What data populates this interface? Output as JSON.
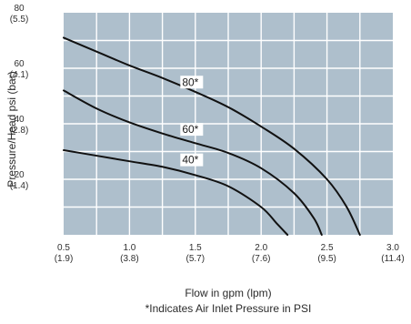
{
  "chart_data": {
    "type": "line",
    "xlabel": "Flow in gpm (lpm)",
    "ylabel": "Pressure/Head psi (bar)",
    "note": "*Indicates Air Inlet Pressure in PSI",
    "xlim": [
      0.5,
      3.0
    ],
    "ylim": [
      0,
      80
    ],
    "grid": true,
    "background_color": "#aebfcc",
    "grid_color": "#ffffff",
    "line_color": "#111111",
    "x_ticks": [
      {
        "value": 0.5,
        "label": "0.5",
        "sublabel": "(1.9)"
      },
      {
        "value": 1.0,
        "label": "1.0",
        "sublabel": "(3.8)"
      },
      {
        "value": 1.5,
        "label": "1.5",
        "sublabel": "(5.7)"
      },
      {
        "value": 2.0,
        "label": "2.0",
        "sublabel": "(7.6)"
      },
      {
        "value": 2.5,
        "label": "2.5",
        "sublabel": "(9.5)"
      },
      {
        "value": 3.0,
        "label": "3.0",
        "sublabel": "(11.4)"
      }
    ],
    "y_ticks": [
      {
        "value": 80,
        "label": "80",
        "sublabel": "(5.5)"
      },
      {
        "value": 60,
        "label": "60",
        "sublabel": "(4.1)"
      },
      {
        "value": 40,
        "label": "40",
        "sublabel": "(2.8)"
      },
      {
        "value": 20,
        "label": "20",
        "sublabel": "(1.4)"
      }
    ],
    "series": [
      {
        "name": "80*",
        "points": [
          {
            "x": 0.5,
            "y": 71
          },
          {
            "x": 0.75,
            "y": 66
          },
          {
            "x": 1.0,
            "y": 61
          },
          {
            "x": 1.25,
            "y": 56.5
          },
          {
            "x": 1.5,
            "y": 51.5
          },
          {
            "x": 1.75,
            "y": 46
          },
          {
            "x": 2.0,
            "y": 39
          },
          {
            "x": 2.25,
            "y": 31
          },
          {
            "x": 2.5,
            "y": 20
          },
          {
            "x": 2.65,
            "y": 10
          },
          {
            "x": 2.75,
            "y": 0
          }
        ],
        "label_at": {
          "x": 1.4,
          "y": 55
        }
      },
      {
        "name": "60*",
        "points": [
          {
            "x": 0.5,
            "y": 52
          },
          {
            "x": 0.75,
            "y": 45.5
          },
          {
            "x": 1.0,
            "y": 40.5
          },
          {
            "x": 1.25,
            "y": 36.5
          },
          {
            "x": 1.5,
            "y": 33
          },
          {
            "x": 1.75,
            "y": 29.5
          },
          {
            "x": 2.0,
            "y": 24
          },
          {
            "x": 2.25,
            "y": 15
          },
          {
            "x": 2.4,
            "y": 6
          },
          {
            "x": 2.46,
            "y": 0
          }
        ],
        "label_at": {
          "x": 1.4,
          "y": 38
        }
      },
      {
        "name": "40*",
        "points": [
          {
            "x": 0.5,
            "y": 30.5
          },
          {
            "x": 0.75,
            "y": 28.5
          },
          {
            "x": 1.0,
            "y": 26.5
          },
          {
            "x": 1.25,
            "y": 24.5
          },
          {
            "x": 1.5,
            "y": 21.5
          },
          {
            "x": 1.75,
            "y": 17.5
          },
          {
            "x": 2.0,
            "y": 10
          },
          {
            "x": 2.12,
            "y": 4
          },
          {
            "x": 2.2,
            "y": 0
          }
        ],
        "label_at": {
          "x": 1.4,
          "y": 27
        }
      }
    ]
  }
}
